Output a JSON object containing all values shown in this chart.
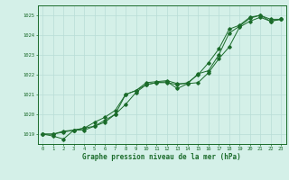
{
  "title": "Graphe pression niveau de la mer (hPa)",
  "bg_color": "#d4f0e8",
  "grid_color": "#b8ddd6",
  "line_color": "#1a6b2a",
  "x_min": -0.5,
  "x_max": 23.5,
  "y_min": 1018.5,
  "y_max": 1025.5,
  "yticks": [
    1019,
    1020,
    1021,
    1022,
    1023,
    1024,
    1025
  ],
  "xticks": [
    0,
    1,
    2,
    3,
    4,
    5,
    6,
    7,
    8,
    9,
    10,
    11,
    12,
    13,
    14,
    15,
    16,
    17,
    18,
    19,
    20,
    21,
    22,
    23
  ],
  "series1": [
    1019.0,
    1018.9,
    1018.75,
    1019.2,
    1019.2,
    1019.4,
    1019.6,
    1020.0,
    1020.5,
    1021.1,
    1021.5,
    1021.6,
    1021.65,
    1021.3,
    1021.55,
    1021.6,
    1022.1,
    1022.8,
    1023.4,
    1024.4,
    1024.7,
    1024.9,
    1024.7,
    1024.8
  ],
  "series2": [
    1019.0,
    1019.0,
    1019.15,
    1019.2,
    1019.3,
    1019.6,
    1019.85,
    1020.2,
    1021.0,
    1021.2,
    1021.6,
    1021.65,
    1021.7,
    1021.55,
    1021.55,
    1022.05,
    1022.2,
    1023.0,
    1024.1,
    1024.45,
    1024.85,
    1025.0,
    1024.8,
    1024.8
  ],
  "series3": [
    1019.0,
    1019.0,
    1019.1,
    1019.2,
    1019.3,
    1019.4,
    1019.7,
    1020.0,
    1021.0,
    1021.2,
    1021.5,
    1021.6,
    1021.6,
    1021.5,
    1021.6,
    1022.0,
    1022.6,
    1023.3,
    1024.3,
    1024.5,
    1024.9,
    1025.0,
    1024.7,
    1024.8
  ]
}
